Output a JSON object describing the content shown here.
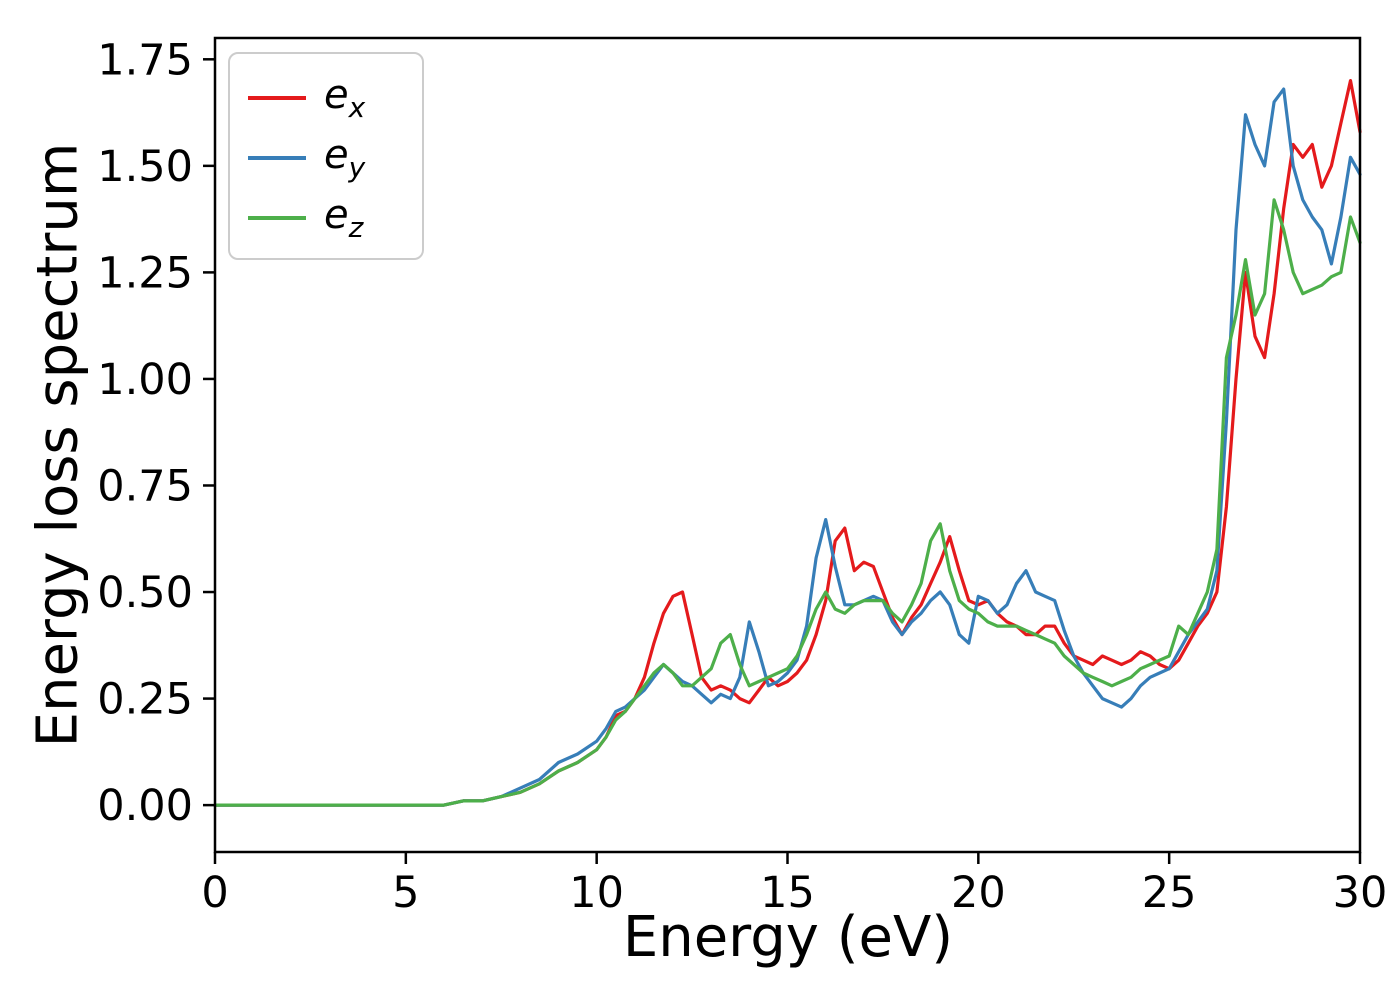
{
  "figure": {
    "background": "#ffffff"
  },
  "chart_data": {
    "type": "line",
    "title": "",
    "xlabel": "Energy (eV)",
    "ylabel": "Energy loss spectrum",
    "xlim": [
      0,
      30
    ],
    "ylim": [
      -0.11,
      1.8
    ],
    "grid": false,
    "legend_position": "upper left",
    "xticks": [
      {
        "v": 0,
        "label": "0"
      },
      {
        "v": 5,
        "label": "5"
      },
      {
        "v": 10,
        "label": "10"
      },
      {
        "v": 15,
        "label": "15"
      },
      {
        "v": 20,
        "label": "20"
      },
      {
        "v": 25,
        "label": "25"
      },
      {
        "v": 30,
        "label": "30"
      }
    ],
    "yticks": [
      {
        "v": 0.0,
        "label": "0.00"
      },
      {
        "v": 0.25,
        "label": "0.25"
      },
      {
        "v": 0.5,
        "label": "0.50"
      },
      {
        "v": 0.75,
        "label": "0.75"
      },
      {
        "v": 1.0,
        "label": "1.00"
      },
      {
        "v": 1.25,
        "label": "1.25"
      },
      {
        "v": 1.5,
        "label": "1.50"
      },
      {
        "v": 1.75,
        "label": "1.75"
      }
    ],
    "x": [
      0,
      2,
      4,
      6,
      6.5,
      7,
      7.5,
      8,
      8.5,
      9,
      9.5,
      10,
      10.25,
      10.5,
      10.75,
      11,
      11.25,
      11.5,
      11.75,
      12,
      12.25,
      12.5,
      12.75,
      13,
      13.25,
      13.5,
      13.75,
      14,
      14.25,
      14.5,
      14.75,
      15,
      15.25,
      15.5,
      15.75,
      16,
      16.25,
      16.5,
      16.75,
      17,
      17.25,
      17.5,
      17.75,
      18,
      18.25,
      18.5,
      18.75,
      19,
      19.25,
      19.5,
      19.75,
      20,
      20.25,
      20.5,
      20.75,
      21,
      21.25,
      21.5,
      21.75,
      22,
      22.25,
      22.5,
      22.75,
      23,
      23.25,
      23.5,
      23.75,
      24,
      24.25,
      24.5,
      24.75,
      25,
      25.25,
      25.5,
      25.75,
      26,
      26.25,
      26.5,
      26.75,
      27,
      27.25,
      27.5,
      27.75,
      28,
      28.25,
      28.5,
      28.75,
      29,
      29.25,
      29.5,
      29.75,
      30
    ],
    "series": [
      {
        "name": "e_x",
        "label_base": "e",
        "label_sub": "x",
        "color": "#e41a1c",
        "values": [
          0,
          0,
          0,
          0,
          0.01,
          0.01,
          0.02,
          0.03,
          0.05,
          0.08,
          0.1,
          0.13,
          0.16,
          0.21,
          0.22,
          0.25,
          0.3,
          0.38,
          0.45,
          0.49,
          0.5,
          0.4,
          0.3,
          0.27,
          0.28,
          0.27,
          0.25,
          0.24,
          0.27,
          0.3,
          0.28,
          0.29,
          0.31,
          0.34,
          0.4,
          0.48,
          0.62,
          0.65,
          0.55,
          0.57,
          0.56,
          0.5,
          0.44,
          0.4,
          0.44,
          0.47,
          0.52,
          0.57,
          0.63,
          0.55,
          0.48,
          0.47,
          0.48,
          0.45,
          0.43,
          0.42,
          0.4,
          0.4,
          0.42,
          0.42,
          0.38,
          0.35,
          0.34,
          0.33,
          0.35,
          0.34,
          0.33,
          0.34,
          0.36,
          0.35,
          0.33,
          0.32,
          0.34,
          0.38,
          0.42,
          0.45,
          0.5,
          0.7,
          1.0,
          1.25,
          1.1,
          1.05,
          1.2,
          1.4,
          1.55,
          1.52,
          1.55,
          1.45,
          1.5,
          1.6,
          1.7,
          1.58
        ]
      },
      {
        "name": "e_y",
        "label_base": "e",
        "label_sub": "y",
        "color": "#377eb8",
        "values": [
          0,
          0,
          0,
          0,
          0.01,
          0.01,
          0.02,
          0.04,
          0.06,
          0.1,
          0.12,
          0.15,
          0.18,
          0.22,
          0.23,
          0.25,
          0.27,
          0.3,
          0.33,
          0.31,
          0.29,
          0.28,
          0.26,
          0.24,
          0.26,
          0.25,
          0.3,
          0.43,
          0.36,
          0.28,
          0.29,
          0.31,
          0.34,
          0.42,
          0.58,
          0.67,
          0.56,
          0.47,
          0.47,
          0.48,
          0.49,
          0.48,
          0.43,
          0.4,
          0.43,
          0.45,
          0.48,
          0.5,
          0.47,
          0.4,
          0.38,
          0.49,
          0.48,
          0.45,
          0.47,
          0.52,
          0.55,
          0.5,
          0.49,
          0.48,
          0.41,
          0.35,
          0.31,
          0.28,
          0.25,
          0.24,
          0.23,
          0.25,
          0.28,
          0.3,
          0.31,
          0.32,
          0.36,
          0.4,
          0.43,
          0.46,
          0.55,
          0.9,
          1.35,
          1.62,
          1.55,
          1.5,
          1.65,
          1.68,
          1.5,
          1.42,
          1.38,
          1.35,
          1.27,
          1.38,
          1.52,
          1.48
        ]
      },
      {
        "name": "e_z",
        "label_base": "e",
        "label_sub": "z",
        "color": "#4daf4a",
        "values": [
          0,
          0,
          0,
          0,
          0.01,
          0.01,
          0.02,
          0.03,
          0.05,
          0.08,
          0.1,
          0.13,
          0.16,
          0.2,
          0.22,
          0.25,
          0.28,
          0.31,
          0.33,
          0.31,
          0.28,
          0.28,
          0.3,
          0.32,
          0.38,
          0.4,
          0.33,
          0.28,
          0.29,
          0.3,
          0.31,
          0.32,
          0.35,
          0.4,
          0.46,
          0.5,
          0.46,
          0.45,
          0.47,
          0.48,
          0.48,
          0.48,
          0.45,
          0.43,
          0.47,
          0.52,
          0.62,
          0.66,
          0.55,
          0.48,
          0.46,
          0.45,
          0.43,
          0.42,
          0.42,
          0.42,
          0.41,
          0.4,
          0.39,
          0.38,
          0.35,
          0.33,
          0.31,
          0.3,
          0.29,
          0.28,
          0.29,
          0.3,
          0.32,
          0.33,
          0.34,
          0.35,
          0.42,
          0.4,
          0.45,
          0.5,
          0.6,
          1.05,
          1.15,
          1.28,
          1.15,
          1.2,
          1.42,
          1.35,
          1.25,
          1.2,
          1.21,
          1.22,
          1.24,
          1.25,
          1.38,
          1.32
        ]
      }
    ]
  }
}
